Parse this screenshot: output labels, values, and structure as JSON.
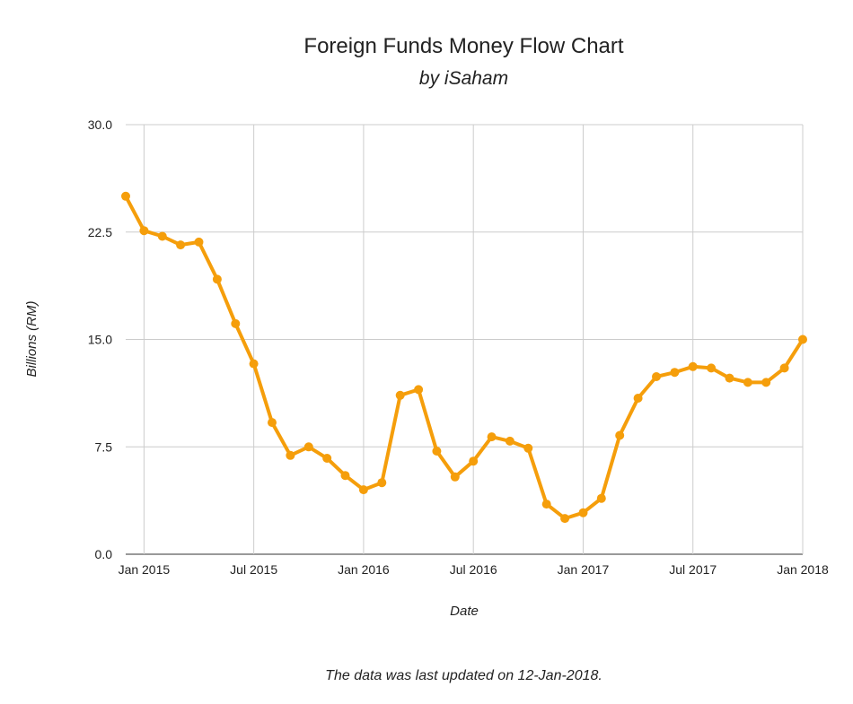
{
  "header": {
    "title": "Foreign Funds Money Flow Chart",
    "subtitle": "by iSaham"
  },
  "footer": {
    "note": "The data was last updated on 12-Jan-2018."
  },
  "colors": {
    "series": "#f59e0b",
    "grid": "#cccccc",
    "axis": "#333333"
  },
  "chart_data": {
    "type": "line",
    "title": "Foreign Funds Money Flow Chart",
    "subtitle": "by iSaham",
    "xlabel": "Date",
    "ylabel": "Billions (RM)",
    "ylim": [
      0,
      30
    ],
    "yticks": [
      "0.0",
      "7.5",
      "15.0",
      "22.5",
      "30.0"
    ],
    "xlim": [
      "2014-12",
      "2018-01"
    ],
    "xticks": [
      {
        "label": "Jan 2015",
        "date": "2015-01"
      },
      {
        "label": "Jul 2015",
        "date": "2015-07"
      },
      {
        "label": "Jan 2016",
        "date": "2016-01"
      },
      {
        "label": "Jul 2016",
        "date": "2016-07"
      },
      {
        "label": "Jan 2017",
        "date": "2017-01"
      },
      {
        "label": "Jul 2017",
        "date": "2017-07"
      },
      {
        "label": "Jan 2018",
        "date": "2018-01"
      }
    ],
    "grid": true,
    "legend": "none",
    "series": [
      {
        "x": [
          "2014-12",
          "2015-01",
          "2015-02",
          "2015-03",
          "2015-04",
          "2015-05",
          "2015-06",
          "2015-07",
          "2015-08",
          "2015-09",
          "2015-10",
          "2015-11",
          "2015-12",
          "2016-01",
          "2016-02",
          "2016-03",
          "2016-04",
          "2016-05",
          "2016-06",
          "2016-07",
          "2016-08",
          "2016-09",
          "2016-10",
          "2016-11",
          "2016-12",
          "2017-01",
          "2017-02",
          "2017-03",
          "2017-04",
          "2017-05",
          "2017-06",
          "2017-07",
          "2017-08",
          "2017-09",
          "2017-10",
          "2017-11",
          "2017-12",
          "2018-01"
        ],
        "values": [
          25.0,
          22.6,
          22.2,
          21.6,
          21.8,
          19.2,
          16.1,
          13.3,
          9.2,
          6.9,
          7.5,
          6.7,
          5.5,
          4.5,
          5.0,
          11.1,
          11.5,
          7.2,
          5.4,
          6.5,
          8.2,
          7.9,
          7.4,
          3.5,
          2.5,
          2.9,
          3.9,
          8.3,
          10.9,
          12.4,
          12.7,
          13.1,
          13.0,
          12.3,
          12.0,
          12.0,
          13.0,
          15.0
        ]
      }
    ]
  }
}
